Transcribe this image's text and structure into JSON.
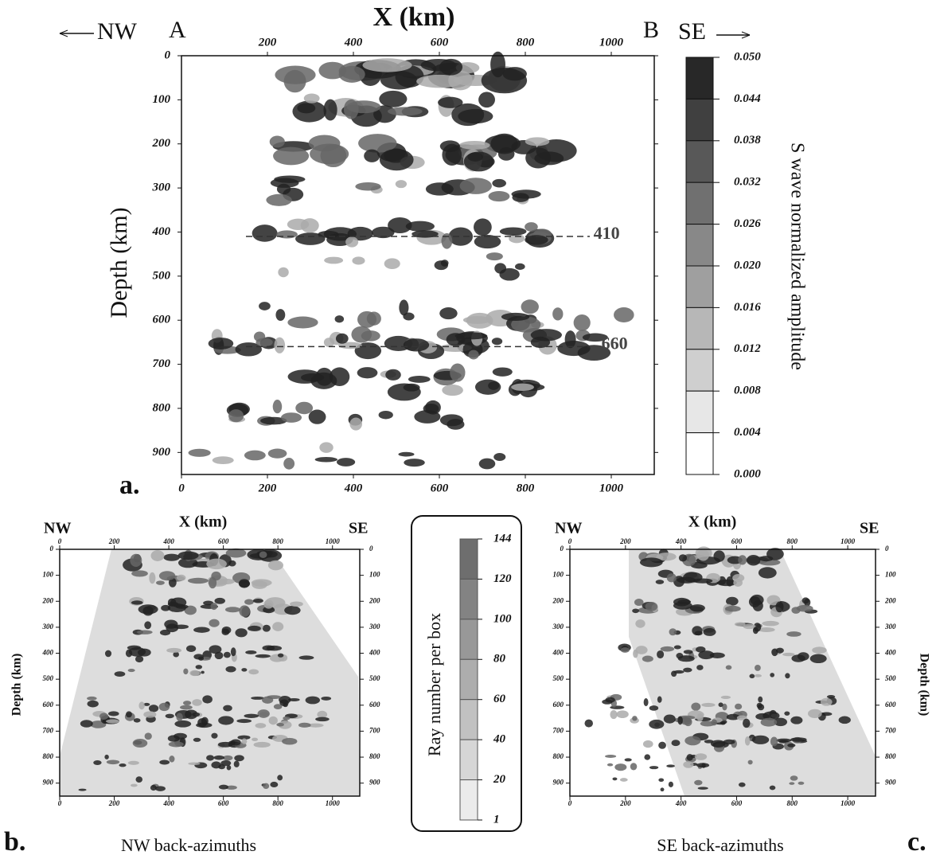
{
  "panel_a": {
    "title": "X (km)",
    "left_direction": "NW",
    "left_point": "A",
    "right_point": "B",
    "right_direction": "SE",
    "y_label": "Depth (km)",
    "panel_label": "a.",
    "xlim": [
      0,
      1100
    ],
    "ylim": [
      0,
      950
    ],
    "top_xticks": [
      200,
      400,
      600,
      800,
      1000
    ],
    "bottom_xticks": [
      0,
      200,
      400,
      600,
      800,
      1000
    ],
    "yticks": [
      0,
      100,
      200,
      300,
      400,
      500,
      600,
      700,
      800,
      900
    ],
    "discontinuities": [
      410,
      660
    ],
    "colorbar": {
      "label": "S wave normalized amplitude",
      "ticks": [
        "0.050",
        "0.044",
        "0.038",
        "0.032",
        "0.026",
        "0.020",
        "0.016",
        "0.012",
        "0.008",
        "0.004",
        "0.000"
      ]
    }
  },
  "panel_b": {
    "title": "X (km)",
    "left_direction": "NW",
    "right_direction": "SE",
    "y_label": "Depth (km)",
    "panel_label": "b.",
    "caption": "NW back-azimuths",
    "xlim": [
      0,
      1100
    ],
    "ylim": [
      0,
      950
    ],
    "top_xticks": [
      0,
      200,
      400,
      600,
      800,
      1000
    ],
    "bottom_xticks": [
      0,
      200,
      400,
      600,
      800,
      1000
    ],
    "yticks": [
      0,
      100,
      200,
      300,
      400,
      500,
      600,
      700,
      800,
      900
    ]
  },
  "ray_colorbar": {
    "label": "Ray number per box",
    "ticks": [
      144,
      120,
      100,
      80,
      60,
      40,
      20,
      1
    ]
  },
  "panel_c": {
    "title": "X (km)",
    "left_direction": "NW",
    "right_direction": "SE",
    "y_label": "Depth (km)",
    "panel_label": "c.",
    "caption": "SE back-azimuths",
    "xlim": [
      0,
      1100
    ],
    "ylim": [
      0,
      950
    ],
    "top_xticks": [
      0,
      200,
      400,
      600,
      800,
      1000
    ],
    "bottom_xticks": [
      0,
      200,
      400,
      600,
      800,
      1000
    ],
    "yticks": [
      0,
      100,
      200,
      300,
      400,
      500,
      600,
      700,
      800,
      900
    ]
  }
}
